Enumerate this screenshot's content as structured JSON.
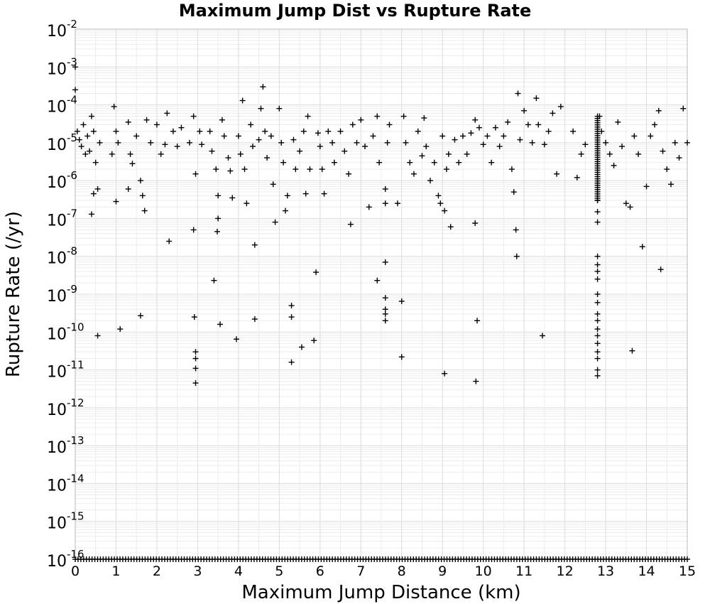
{
  "chart_data": {
    "type": "scatter",
    "title": "Maximum Jump Dist vs Rupture Rate",
    "xlabel": "Maximum Jump Distance (km)",
    "ylabel": "Rupture Rate (/yr)",
    "xlim": [
      0,
      15
    ],
    "ylim": [
      1e-16,
      0.01
    ],
    "yscale": "log",
    "grid": true,
    "marker": "+",
    "marker_color": "#000000",
    "x_ticks": [
      "0",
      "1",
      "2",
      "3",
      "4",
      "5",
      "6",
      "7",
      "8",
      "9",
      "10",
      "11",
      "12",
      "13",
      "14",
      "15"
    ],
    "y_ticks": [
      {
        "base": "10",
        "exp": "-2"
      },
      {
        "base": "10",
        "exp": "-3"
      },
      {
        "base": "10",
        "exp": "-4"
      },
      {
        "base": "10",
        "exp": "-5"
      },
      {
        "base": "10",
        "exp": "-6"
      },
      {
        "base": "10",
        "exp": "-7"
      },
      {
        "base": "10",
        "exp": "-8"
      },
      {
        "base": "10",
        "exp": "-9"
      },
      {
        "base": "10",
        "exp": "-10"
      },
      {
        "base": "10",
        "exp": "-11"
      },
      {
        "base": "10",
        "exp": "-12"
      },
      {
        "base": "10",
        "exp": "-13"
      },
      {
        "base": "10",
        "exp": "-14"
      },
      {
        "base": "10",
        "exp": "-15"
      },
      {
        "base": "10",
        "exp": "-16"
      }
    ],
    "points": [
      [
        0.0,
        0.00025
      ],
      [
        0.0,
        0.001
      ],
      [
        0.05,
        2e-05
      ],
      [
        0.1,
        1.2e-05
      ],
      [
        0.15,
        8e-06
      ],
      [
        0.2,
        3e-05
      ],
      [
        0.25,
        5e-06
      ],
      [
        0.3,
        1.5e-05
      ],
      [
        0.35,
        6e-06
      ],
      [
        0.4,
        5e-05
      ],
      [
        0.45,
        2e-05
      ],
      [
        0.5,
        3e-06
      ],
      [
        0.4,
        1.3e-07
      ],
      [
        0.45,
        4.5e-07
      ],
      [
        0.55,
        6e-07
      ],
      [
        0.6,
        1e-05
      ],
      [
        0.55,
        8e-11
      ],
      [
        0.95,
        9e-05
      ],
      [
        1.0,
        2e-05
      ],
      [
        1.05,
        1e-05
      ],
      [
        0.9,
        5e-06
      ],
      [
        1.0,
        2.8e-07
      ],
      [
        1.1,
        1.2e-10
      ],
      [
        1.3,
        3.5e-05
      ],
      [
        1.35,
        5e-06
      ],
      [
        1.4,
        2.8e-06
      ],
      [
        1.3,
        6e-07
      ],
      [
        1.5,
        1.5e-05
      ],
      [
        1.6,
        1e-06
      ],
      [
        1.65,
        4e-07
      ],
      [
        1.7,
        1.6e-07
      ],
      [
        1.6,
        2.7e-10
      ],
      [
        1.75,
        4e-05
      ],
      [
        1.85,
        1e-05
      ],
      [
        2.0,
        3e-05
      ],
      [
        2.1,
        5e-06
      ],
      [
        2.2,
        9e-06
      ],
      [
        2.25,
        6e-05
      ],
      [
        2.3,
        2.5e-08
      ],
      [
        2.4,
        2e-05
      ],
      [
        2.5,
        8e-06
      ],
      [
        2.6,
        2.5e-05
      ],
      [
        2.8,
        1e-05
      ],
      [
        2.9,
        5e-05
      ],
      [
        2.95,
        1.5e-06
      ],
      [
        2.9,
        5e-08
      ],
      [
        2.92,
        2.5e-10
      ],
      [
        2.95,
        3e-11
      ],
      [
        2.95,
        2e-11
      ],
      [
        2.95,
        1.1e-11
      ],
      [
        2.95,
        4.5e-12
      ],
      [
        3.05,
        2e-05
      ],
      [
        3.1,
        9e-06
      ],
      [
        3.3,
        2e-05
      ],
      [
        3.35,
        6e-06
      ],
      [
        3.4,
        2.3e-09
      ],
      [
        3.45,
        2e-06
      ],
      [
        3.5,
        4e-07
      ],
      [
        3.5,
        1e-07
      ],
      [
        3.48,
        4.5e-08
      ],
      [
        3.55,
        1.6e-10
      ],
      [
        3.6,
        4e-05
      ],
      [
        3.65,
        1.5e-05
      ],
      [
        3.75,
        4e-06
      ],
      [
        3.8,
        1.8e-06
      ],
      [
        3.85,
        3.5e-07
      ],
      [
        3.95,
        6.5e-11
      ],
      [
        4.0,
        1.5e-05
      ],
      [
        4.05,
        5e-06
      ],
      [
        4.1,
        0.00013
      ],
      [
        4.15,
        2e-06
      ],
      [
        4.2,
        2.5e-07
      ],
      [
        4.3,
        3e-05
      ],
      [
        4.35,
        8e-06
      ],
      [
        4.4,
        2e-08
      ],
      [
        4.4,
        2.2e-10
      ],
      [
        4.5,
        1.2e-05
      ],
      [
        4.55,
        8e-05
      ],
      [
        4.6,
        0.0003
      ],
      [
        4.65,
        2e-05
      ],
      [
        4.7,
        4e-06
      ],
      [
        4.8,
        1.5e-05
      ],
      [
        4.85,
        8e-07
      ],
      [
        4.9,
        8e-08
      ],
      [
        5.0,
        8e-05
      ],
      [
        5.05,
        1e-05
      ],
      [
        5.1,
        3e-06
      ],
      [
        5.15,
        1.6e-07
      ],
      [
        5.2,
        4e-07
      ],
      [
        5.3,
        5e-10
      ],
      [
        5.3,
        2.5e-10
      ],
      [
        5.3,
        1.6e-11
      ],
      [
        5.35,
        1.2e-05
      ],
      [
        5.4,
        2e-06
      ],
      [
        5.5,
        6e-06
      ],
      [
        5.55,
        4e-11
      ],
      [
        5.6,
        2e-05
      ],
      [
        5.65,
        4.5e-07
      ],
      [
        5.7,
        5e-05
      ],
      [
        5.75,
        2e-06
      ],
      [
        5.85,
        6e-11
      ],
      [
        5.9,
        3.8e-09
      ],
      [
        5.95,
        1.8e-05
      ],
      [
        6.0,
        8e-06
      ],
      [
        6.05,
        2e-06
      ],
      [
        6.1,
        4.5e-07
      ],
      [
        6.2,
        2e-05
      ],
      [
        6.3,
        1e-05
      ],
      [
        6.35,
        3e-06
      ],
      [
        6.5,
        2e-05
      ],
      [
        6.6,
        6e-06
      ],
      [
        6.7,
        1.5e-06
      ],
      [
        6.75,
        7e-08
      ],
      [
        6.8,
        3e-05
      ],
      [
        6.9,
        1e-05
      ],
      [
        7.0,
        4e-05
      ],
      [
        7.1,
        8e-06
      ],
      [
        7.2,
        2e-07
      ],
      [
        7.3,
        1.5e-05
      ],
      [
        7.4,
        5e-05
      ],
      [
        7.4,
        2.3e-09
      ],
      [
        7.45,
        3e-06
      ],
      [
        7.6,
        7e-09
      ],
      [
        7.6,
        8e-10
      ],
      [
        7.6,
        4e-10
      ],
      [
        7.6,
        3e-10
      ],
      [
        7.6,
        2e-10
      ],
      [
        7.6,
        6e-07
      ],
      [
        7.6,
        2.5e-07
      ],
      [
        7.65,
        1e-05
      ],
      [
        7.7,
        3e-05
      ],
      [
        7.9,
        2.5e-07
      ],
      [
        8.0,
        6.5e-10
      ],
      [
        8.0,
        2.2e-11
      ],
      [
        8.05,
        5e-05
      ],
      [
        8.1,
        1e-05
      ],
      [
        8.2,
        3e-06
      ],
      [
        8.3,
        1.5e-06
      ],
      [
        8.4,
        2e-05
      ],
      [
        8.5,
        4.5e-06
      ],
      [
        8.55,
        4.5e-05
      ],
      [
        8.6,
        8e-06
      ],
      [
        8.7,
        1e-06
      ],
      [
        8.8,
        3e-06
      ],
      [
        8.9,
        4e-07
      ],
      [
        8.95,
        2.5e-07
      ],
      [
        9.0,
        1.5e-05
      ],
      [
        9.05,
        1.6e-07
      ],
      [
        9.05,
        8e-12
      ],
      [
        9.1,
        2e-06
      ],
      [
        9.15,
        5e-06
      ],
      [
        9.2,
        6e-08
      ],
      [
        9.3,
        1.2e-05
      ],
      [
        9.4,
        3e-06
      ],
      [
        9.5,
        1.5e-05
      ],
      [
        9.6,
        5e-06
      ],
      [
        9.7,
        1.8e-05
      ],
      [
        9.8,
        4e-05
      ],
      [
        9.8,
        7.5e-08
      ],
      [
        9.85,
        2e-10
      ],
      [
        9.82,
        5e-12
      ],
      [
        9.9,
        2.5e-05
      ],
      [
        10.0,
        9e-06
      ],
      [
        10.1,
        1.5e-05
      ],
      [
        10.2,
        3e-06
      ],
      [
        10.3,
        2.5e-05
      ],
      [
        10.4,
        8e-06
      ],
      [
        10.5,
        1.5e-05
      ],
      [
        10.6,
        3.5e-05
      ],
      [
        10.7,
        2e-06
      ],
      [
        10.75,
        5e-07
      ],
      [
        10.8,
        5e-08
      ],
      [
        10.82,
        1e-08
      ],
      [
        10.85,
        0.0002
      ],
      [
        10.9,
        1.2e-05
      ],
      [
        11.0,
        7e-05
      ],
      [
        11.1,
        3e-05
      ],
      [
        11.2,
        1e-05
      ],
      [
        11.3,
        0.00015
      ],
      [
        11.35,
        3e-05
      ],
      [
        11.45,
        8e-11
      ],
      [
        11.5,
        9e-06
      ],
      [
        11.6,
        2e-05
      ],
      [
        11.7,
        6e-05
      ],
      [
        11.8,
        1.5e-06
      ],
      [
        11.9,
        9e-05
      ],
      [
        12.2,
        2e-05
      ],
      [
        12.3,
        1.2e-06
      ],
      [
        12.4,
        5e-06
      ],
      [
        12.5,
        9e-06
      ],
      [
        12.8,
        1e-08
      ],
      [
        12.8,
        6e-09
      ],
      [
        12.8,
        4e-09
      ],
      [
        12.8,
        2.5e-09
      ],
      [
        12.8,
        1e-09
      ],
      [
        12.8,
        6e-10
      ],
      [
        12.8,
        3e-10
      ],
      [
        12.8,
        2e-10
      ],
      [
        12.8,
        1.2e-10
      ],
      [
        12.8,
        8e-11
      ],
      [
        12.8,
        5e-11
      ],
      [
        12.8,
        3e-11
      ],
      [
        12.8,
        2e-11
      ],
      [
        12.8,
        1e-11
      ],
      [
        12.8,
        7e-12
      ],
      [
        12.8,
        3e-07
      ],
      [
        12.8,
        1.5e-07
      ],
      [
        12.8,
        8e-08
      ],
      [
        12.85,
        5e-05
      ],
      [
        12.9,
        2e-05
      ],
      [
        13.0,
        1e-05
      ],
      [
        13.1,
        5e-06
      ],
      [
        13.2,
        2.5e-06
      ],
      [
        13.3,
        3.5e-05
      ],
      [
        13.4,
        8e-06
      ],
      [
        13.5,
        2.5e-07
      ],
      [
        13.6,
        2e-07
      ],
      [
        13.65,
        3.2e-11
      ],
      [
        13.7,
        1.5e-05
      ],
      [
        13.8,
        5e-06
      ],
      [
        13.9,
        1.8e-08
      ],
      [
        14.0,
        7e-07
      ],
      [
        14.1,
        1.5e-05
      ],
      [
        14.2,
        3e-05
      ],
      [
        14.3,
        7e-05
      ],
      [
        14.35,
        4.5e-09
      ],
      [
        14.4,
        6e-06
      ],
      [
        14.5,
        2e-06
      ],
      [
        14.6,
        8e-07
      ],
      [
        14.7,
        1e-05
      ],
      [
        14.8,
        4e-06
      ],
      [
        14.9,
        8e-05
      ],
      [
        15.0,
        1e-05
      ]
    ],
    "column_points": [
      {
        "x": 12.8,
        "y_min": 3e-07,
        "y_max": 5e-05,
        "count": 40
      }
    ],
    "floor_row": {
      "y": 1e-16,
      "x_min": 0,
      "x_max": 15,
      "count": 220
    }
  }
}
